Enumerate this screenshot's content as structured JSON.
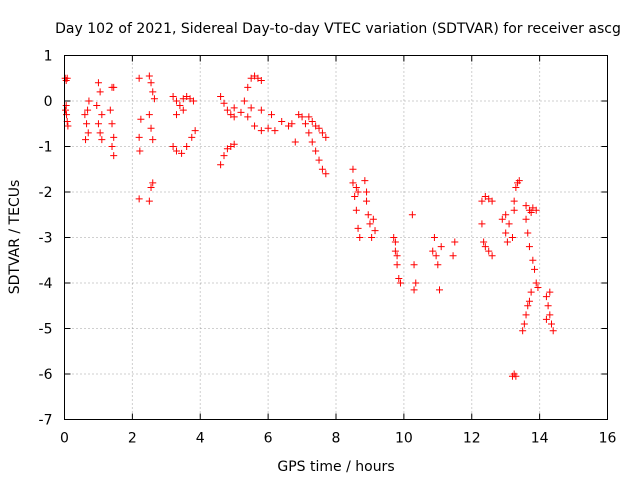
{
  "chart_data": {
    "type": "scatter",
    "title": "Day 102 of 2021, Sidereal Day-to-day VTEC variation (SDTVAR) for receiver ascg",
    "xlabel": "GPS time / hours",
    "ylabel": "SDTVAR / TECUs",
    "xlim": [
      0,
      16
    ],
    "ylim": [
      -7,
      1
    ],
    "xticks": [
      "0",
      "2",
      "4",
      "6",
      "8",
      "10",
      "12",
      "14",
      "16"
    ],
    "yticks": [
      "1",
      "0",
      "-1",
      "-2",
      "-3",
      "-4",
      "-5",
      "-6",
      "-7"
    ],
    "grid": true,
    "legend": "none",
    "marker": "+",
    "series_color": "#ff0000",
    "series": [
      {
        "name": "SDTVAR",
        "points": [
          [
            0.02,
            0.5
          ],
          [
            0.05,
            0.45
          ],
          [
            0.08,
            0.5
          ],
          [
            0.03,
            -0.2
          ],
          [
            0.06,
            -0.3
          ],
          [
            0.08,
            -0.45
          ],
          [
            0.1,
            -0.55
          ],
          [
            0.05,
            -0.1
          ],
          [
            0.6,
            -0.3
          ],
          [
            0.65,
            -0.5
          ],
          [
            0.7,
            -0.7
          ],
          [
            0.62,
            -0.85
          ],
          [
            0.68,
            -0.2
          ],
          [
            0.72,
            0.0
          ],
          [
            1.0,
            0.4
          ],
          [
            1.05,
            0.2
          ],
          [
            1.1,
            -0.3
          ],
          [
            1.0,
            -0.5
          ],
          [
            1.05,
            -0.7
          ],
          [
            1.1,
            -0.85
          ],
          [
            0.95,
            -0.1
          ],
          [
            1.4,
            0.3
          ],
          [
            1.45,
            0.3
          ],
          [
            1.35,
            -0.2
          ],
          [
            1.4,
            -0.5
          ],
          [
            1.45,
            -0.8
          ],
          [
            1.4,
            -1.0
          ],
          [
            1.45,
            -1.2
          ],
          [
            2.2,
            0.5
          ],
          [
            2.25,
            -0.4
          ],
          [
            2.2,
            -0.8
          ],
          [
            2.22,
            -1.1
          ],
          [
            2.2,
            -2.15
          ],
          [
            2.5,
            0.55
          ],
          [
            2.55,
            0.4
          ],
          [
            2.6,
            0.2
          ],
          [
            2.65,
            0.05
          ],
          [
            2.5,
            -0.3
          ],
          [
            2.55,
            -0.6
          ],
          [
            2.6,
            -0.85
          ],
          [
            2.55,
            -1.9
          ],
          [
            2.6,
            -1.8
          ],
          [
            2.5,
            -2.2
          ],
          [
            3.2,
            0.1
          ],
          [
            3.3,
            0.0
          ],
          [
            3.4,
            -0.1
          ],
          [
            3.5,
            0.05
          ],
          [
            3.6,
            0.1
          ],
          [
            3.7,
            0.05
          ],
          [
            3.8,
            0.0
          ],
          [
            3.3,
            -0.3
          ],
          [
            3.5,
            -0.2
          ],
          [
            3.2,
            -1.0
          ],
          [
            3.3,
            -1.1
          ],
          [
            3.45,
            -1.15
          ],
          [
            3.6,
            -1.0
          ],
          [
            3.75,
            -0.8
          ],
          [
            3.85,
            -0.65
          ],
          [
            4.6,
            0.1
          ],
          [
            4.7,
            -0.05
          ],
          [
            4.8,
            -0.2
          ],
          [
            4.9,
            -0.3
          ],
          [
            5.0,
            -0.35
          ],
          [
            4.6,
            -1.4
          ],
          [
            4.7,
            -1.2
          ],
          [
            4.8,
            -1.05
          ],
          [
            4.9,
            -1.0
          ],
          [
            5.0,
            -0.95
          ],
          [
            5.3,
            0.0
          ],
          [
            5.4,
            0.3
          ],
          [
            5.5,
            0.5
          ],
          [
            5.6,
            0.55
          ],
          [
            5.7,
            0.5
          ],
          [
            5.8,
            0.45
          ],
          [
            5.0,
            -0.15
          ],
          [
            5.2,
            -0.25
          ],
          [
            5.4,
            -0.35
          ],
          [
            5.6,
            -0.55
          ],
          [
            5.8,
            -0.65
          ],
          [
            6.0,
            -0.6
          ],
          [
            6.2,
            -0.65
          ],
          [
            5.5,
            -0.15
          ],
          [
            5.8,
            -0.2
          ],
          [
            6.1,
            -0.3
          ],
          [
            6.4,
            -0.45
          ],
          [
            6.6,
            -0.55
          ],
          [
            6.7,
            -0.5
          ],
          [
            6.8,
            -0.9
          ],
          [
            6.9,
            -0.3
          ],
          [
            7.0,
            -0.35
          ],
          [
            7.1,
            -0.5
          ],
          [
            7.2,
            -0.7
          ],
          [
            7.3,
            -0.9
          ],
          [
            7.4,
            -1.1
          ],
          [
            7.5,
            -1.3
          ],
          [
            7.6,
            -1.5
          ],
          [
            7.7,
            -1.6
          ],
          [
            7.2,
            -0.35
          ],
          [
            7.3,
            -0.45
          ],
          [
            7.4,
            -0.55
          ],
          [
            7.5,
            -0.6
          ],
          [
            7.6,
            -0.7
          ],
          [
            7.7,
            -0.8
          ],
          [
            8.5,
            -1.5
          ],
          [
            8.5,
            -1.8
          ],
          [
            8.55,
            -2.1
          ],
          [
            8.6,
            -2.4
          ],
          [
            8.65,
            -2.8
          ],
          [
            8.7,
            -3.0
          ],
          [
            8.6,
            -1.9
          ],
          [
            8.65,
            -2.0
          ],
          [
            8.9,
            -2.2
          ],
          [
            8.95,
            -2.5
          ],
          [
            9.0,
            -2.7
          ],
          [
            9.05,
            -3.0
          ],
          [
            9.1,
            -2.6
          ],
          [
            9.15,
            -2.85
          ],
          [
            8.85,
            -1.75
          ],
          [
            8.9,
            -2.0
          ],
          [
            9.7,
            -3.0
          ],
          [
            9.75,
            -3.3
          ],
          [
            9.8,
            -3.6
          ],
          [
            9.85,
            -3.9
          ],
          [
            9.9,
            -4.0
          ],
          [
            9.75,
            -3.1
          ],
          [
            9.8,
            -3.4
          ],
          [
            10.25,
            -2.5
          ],
          [
            10.3,
            -3.6
          ],
          [
            10.35,
            -4.0
          ],
          [
            10.3,
            -4.15
          ],
          [
            10.85,
            -3.3
          ],
          [
            10.9,
            -3.0
          ],
          [
            10.95,
            -3.4
          ],
          [
            11.0,
            -3.6
          ],
          [
            11.05,
            -4.15
          ],
          [
            11.1,
            -3.2
          ],
          [
            11.5,
            -3.1
          ],
          [
            11.45,
            -3.4
          ],
          [
            12.3,
            -2.7
          ],
          [
            12.35,
            -3.1
          ],
          [
            12.4,
            -3.2
          ],
          [
            12.5,
            -3.3
          ],
          [
            12.6,
            -3.4
          ],
          [
            12.3,
            -2.2
          ],
          [
            12.4,
            -2.1
          ],
          [
            12.5,
            -2.15
          ],
          [
            12.6,
            -2.2
          ],
          [
            12.9,
            -2.6
          ],
          [
            13.0,
            -2.5
          ],
          [
            13.1,
            -2.7
          ],
          [
            13.2,
            -3.0
          ],
          [
            13.25,
            -2.4
          ],
          [
            13.0,
            -2.9
          ],
          [
            13.05,
            -3.1
          ],
          [
            13.25,
            -2.2
          ],
          [
            13.3,
            -1.9
          ],
          [
            13.35,
            -1.8
          ],
          [
            13.4,
            -1.75
          ],
          [
            13.2,
            -6.05
          ],
          [
            13.25,
            -6.0
          ],
          [
            13.3,
            -6.05
          ],
          [
            13.6,
            -2.3
          ],
          [
            13.7,
            -2.4
          ],
          [
            13.75,
            -2.45
          ],
          [
            13.8,
            -2.35
          ],
          [
            13.9,
            -2.4
          ],
          [
            13.6,
            -2.6
          ],
          [
            13.65,
            -2.9
          ],
          [
            13.7,
            -3.2
          ],
          [
            13.8,
            -3.5
          ],
          [
            13.85,
            -3.7
          ],
          [
            13.9,
            -4.0
          ],
          [
            13.95,
            -4.1
          ],
          [
            13.75,
            -4.2
          ],
          [
            13.7,
            -4.4
          ],
          [
            13.65,
            -4.5
          ],
          [
            13.6,
            -4.7
          ],
          [
            13.55,
            -4.9
          ],
          [
            13.5,
            -5.05
          ],
          [
            14.2,
            -4.3
          ],
          [
            14.25,
            -4.5
          ],
          [
            14.3,
            -4.7
          ],
          [
            14.35,
            -4.9
          ],
          [
            14.4,
            -5.05
          ],
          [
            14.2,
            -4.8
          ],
          [
            14.3,
            -4.2
          ]
        ]
      }
    ]
  }
}
